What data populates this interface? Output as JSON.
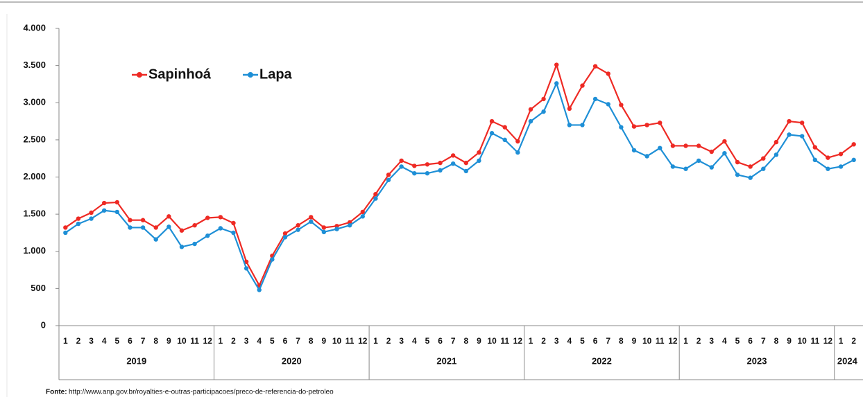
{
  "chart_data": {
    "type": "line",
    "categories": [
      "1",
      "2",
      "3",
      "4",
      "5",
      "6",
      "7",
      "8",
      "9",
      "10",
      "11",
      "12",
      "1",
      "2",
      "3",
      "4",
      "5",
      "6",
      "7",
      "8",
      "9",
      "10",
      "11",
      "12",
      "1",
      "2",
      "3",
      "4",
      "5",
      "6",
      "7",
      "8",
      "9",
      "10",
      "11",
      "12",
      "1",
      "2",
      "3",
      "4",
      "5",
      "6",
      "7",
      "8",
      "9",
      "10",
      "11",
      "12",
      "1",
      "2",
      "3",
      "4",
      "5",
      "6",
      "7",
      "8",
      "9",
      "10",
      "11",
      "12",
      "1",
      "2"
    ],
    "years": [
      "2019",
      "2020",
      "2021",
      "2022",
      "2023",
      "2024"
    ],
    "series": [
      {
        "name": "Sapinhoá",
        "color": "#ee2a24",
        "values": [
          1320,
          1440,
          1520,
          1650,
          1660,
          1420,
          1420,
          1320,
          1470,
          1280,
          1350,
          1450,
          1460,
          1380,
          860,
          540,
          940,
          1240,
          1350,
          1460,
          1320,
          1340,
          1390,
          1530,
          1770,
          2030,
          2220,
          2150,
          2170,
          2190,
          2290,
          2190,
          2330,
          2750,
          2670,
          2480,
          2910,
          3050,
          3510,
          2920,
          3230,
          3490,
          3390,
          2970,
          2680,
          2700,
          2730,
          2420,
          2420,
          2420,
          2340,
          2480,
          2200,
          2140,
          2250,
          2470,
          2750,
          2730,
          2400,
          2260,
          2310,
          2440
        ]
      },
      {
        "name": "Lapa",
        "color": "#1e8fd6",
        "values": [
          1250,
          1370,
          1440,
          1550,
          1530,
          1320,
          1320,
          1160,
          1330,
          1060,
          1100,
          1210,
          1310,
          1250,
          770,
          480,
          890,
          1190,
          1290,
          1400,
          1260,
          1300,
          1350,
          1470,
          1710,
          1960,
          2140,
          2050,
          2050,
          2090,
          2180,
          2080,
          2220,
          2590,
          2500,
          2330,
          2750,
          2880,
          3260,
          2700,
          2700,
          3050,
          2980,
          2670,
          2360,
          2280,
          2390,
          2140,
          2110,
          2220,
          2130,
          2320,
          2030,
          1990,
          2110,
          2300,
          2570,
          2550,
          2230,
          2110,
          2140,
          2230
        ]
      }
    ],
    "ylim": [
      0,
      4000
    ],
    "yticks": [
      0,
      500,
      {
        "value": 1000,
        "label": "1.000"
      },
      {
        "value": 1500,
        "label": "1.500"
      },
      {
        "value": 2000,
        "label": "2.000"
      },
      {
        "value": 2500,
        "label": "2.500"
      },
      {
        "value": 3000,
        "label": "3.000"
      },
      {
        "value": 3500,
        "label": "3.500"
      },
      {
        "value": 4000,
        "label": "4.000"
      }
    ],
    "source_label": "Fonte:",
    "source_url": "http://www.anp.gov.br/royalties-e-outras-participacoes/preco-de-referencia-do-petroleo"
  }
}
